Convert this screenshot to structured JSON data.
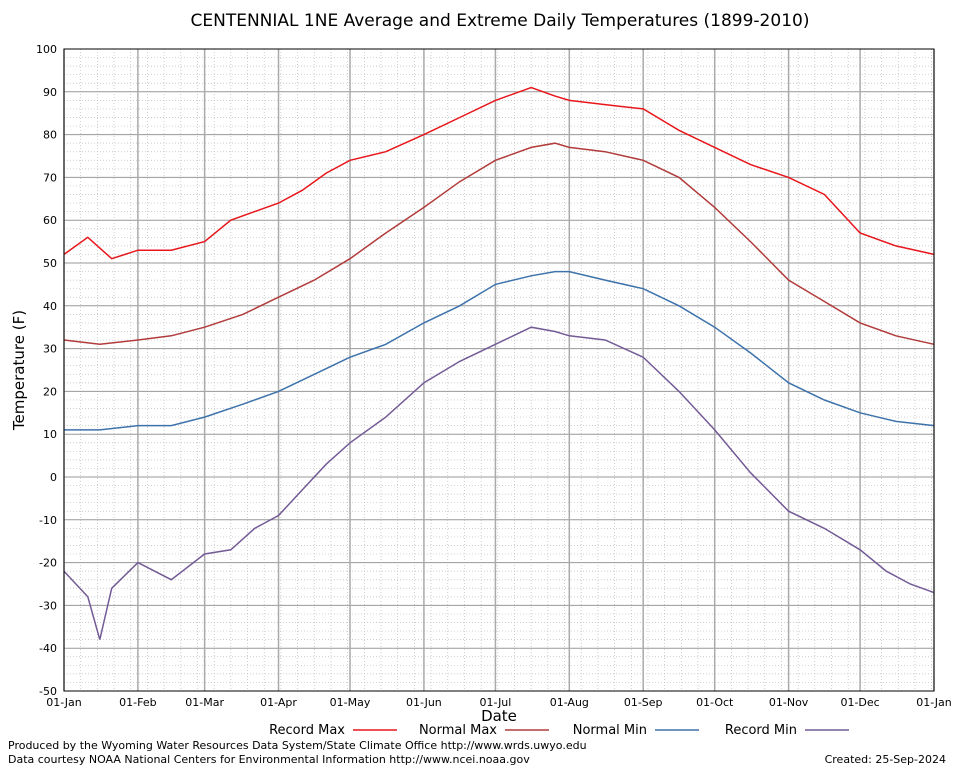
{
  "chart_data": {
    "type": "line",
    "title": "CENTENNIAL 1NE Average and Extreme Daily Temperatures (1899-2010)",
    "xlabel": "Date",
    "ylabel": "Temperature (F)",
    "ylim": [
      -50,
      100
    ],
    "yticks": [
      -50,
      -40,
      -30,
      -20,
      -10,
      0,
      10,
      20,
      30,
      40,
      50,
      60,
      70,
      80,
      90,
      100
    ],
    "xticks": [
      "01-Jan",
      "01-Feb",
      "01-Mar",
      "01-Apr",
      "01-May",
      "01-Jun",
      "01-Jul",
      "01-Aug",
      "01-Sep",
      "01-Oct",
      "01-Nov",
      "01-Dec",
      "01-Jan"
    ],
    "xtick_days": [
      0,
      31,
      59,
      90,
      120,
      151,
      181,
      212,
      243,
      273,
      304,
      334,
      365
    ],
    "grid": true,
    "legend_position": "bottom",
    "series": [
      {
        "name": "Record Max",
        "color": "#e8161b",
        "x": [
          0,
          10,
          20,
          31,
          45,
          59,
          70,
          80,
          90,
          100,
          110,
          120,
          135,
          151,
          166,
          181,
          196,
          206,
          212,
          227,
          243,
          258,
          273,
          288,
          304,
          319,
          334,
          349,
          365
        ],
        "y": [
          52,
          56,
          51,
          53,
          53,
          55,
          60,
          62,
          64,
          67,
          71,
          74,
          76,
          80,
          84,
          88,
          91,
          89,
          88,
          87,
          86,
          81,
          77,
          73,
          70,
          66,
          57,
          54,
          52
        ]
      },
      {
        "name": "Normal Max",
        "color": "#b23b3b",
        "x": [
          0,
          15,
          31,
          45,
          59,
          75,
          90,
          105,
          120,
          135,
          151,
          166,
          181,
          196,
          206,
          212,
          227,
          243,
          258,
          273,
          288,
          304,
          319,
          334,
          349,
          365
        ],
        "y": [
          32,
          31,
          32,
          33,
          35,
          38,
          42,
          46,
          51,
          57,
          63,
          69,
          74,
          77,
          78,
          77,
          76,
          74,
          70,
          63,
          55,
          46,
          41,
          36,
          33,
          31
        ]
      },
      {
        "name": "Normal Min",
        "color": "#3d72ab",
        "x": [
          0,
          15,
          31,
          45,
          59,
          75,
          90,
          105,
          120,
          135,
          151,
          166,
          181,
          196,
          206,
          212,
          227,
          243,
          258,
          273,
          288,
          304,
          319,
          334,
          349,
          365
        ],
        "y": [
          11,
          11,
          12,
          12,
          14,
          17,
          20,
          24,
          28,
          31,
          36,
          40,
          45,
          47,
          48,
          48,
          46,
          44,
          40,
          35,
          29,
          22,
          18,
          15,
          13,
          12
        ]
      },
      {
        "name": "Record Min",
        "color": "#735b96",
        "x": [
          0,
          10,
          15,
          20,
          31,
          45,
          59,
          70,
          80,
          90,
          100,
          110,
          120,
          135,
          151,
          166,
          181,
          196,
          206,
          212,
          227,
          243,
          258,
          273,
          288,
          304,
          319,
          334,
          345,
          355,
          365
        ],
        "y": [
          -22,
          -28,
          -38,
          -26,
          -20,
          -24,
          -18,
          -17,
          -12,
          -9,
          -3,
          3,
          8,
          14,
          22,
          27,
          31,
          35,
          34,
          33,
          32,
          28,
          20,
          11,
          1,
          -8,
          -12,
          -17,
          -22,
          -25,
          -27
        ]
      }
    ]
  },
  "footer": {
    "produced_by": "Produced by the Wyoming Water Resources Data System/State Climate Office http://www.wrds.uwyo.edu",
    "data_courtesy": "Data courtesy NOAA National Centers for Environmental Information http://www.ncei.noaa.gov",
    "created": "Created: 25-Sep-2024"
  }
}
